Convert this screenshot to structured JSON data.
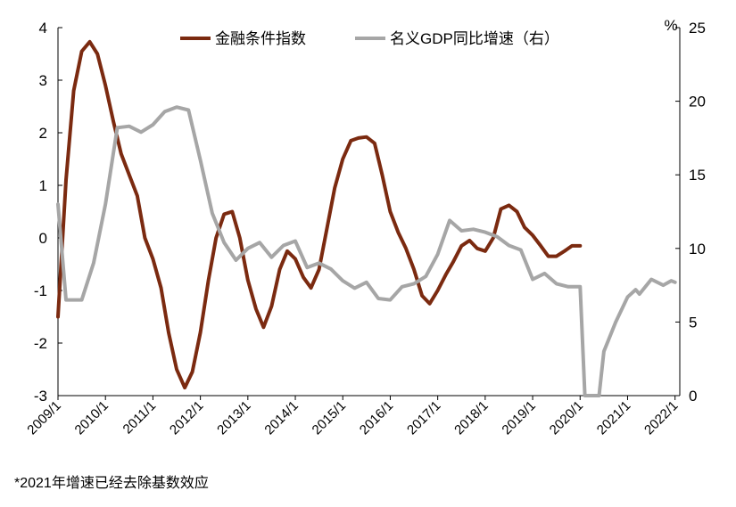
{
  "chart_data": {
    "type": "line",
    "title": "",
    "left_axis": {
      "min": -3,
      "max": 4,
      "ticks": [
        "4",
        "3",
        "2",
        "1",
        "0",
        "-1",
        "-2",
        "-3"
      ]
    },
    "right_axis": {
      "unit": "%",
      "min": 0,
      "max": 25,
      "ticks": [
        "25",
        "20",
        "15",
        "10",
        "5",
        "0"
      ]
    },
    "x_ticks": [
      "2009/1",
      "2010/1",
      "2011/1",
      "2012/1",
      "2013/1",
      "2014/1",
      "2015/1",
      "2016/1",
      "2017/1",
      "2018/1",
      "2019/1",
      "2020/1",
      "2021/1",
      "2022/1"
    ],
    "x_range": [
      2009.0,
      2022.1
    ],
    "grid": false,
    "legend_position": "top-center",
    "series": [
      {
        "name": "金融条件指数",
        "axis": "left",
        "color": "#7B2A10",
        "points": [
          [
            2009.0,
            -1.5
          ],
          [
            2009.17,
            1.1
          ],
          [
            2009.33,
            2.8
          ],
          [
            2009.5,
            3.55
          ],
          [
            2009.67,
            3.73
          ],
          [
            2009.83,
            3.5
          ],
          [
            2010.0,
            2.9
          ],
          [
            2010.17,
            2.2
          ],
          [
            2010.33,
            1.6
          ],
          [
            2010.5,
            1.2
          ],
          [
            2010.67,
            0.8
          ],
          [
            2010.83,
            0.0
          ],
          [
            2011.0,
            -0.4
          ],
          [
            2011.17,
            -0.95
          ],
          [
            2011.33,
            -1.8
          ],
          [
            2011.5,
            -2.5
          ],
          [
            2011.67,
            -2.85
          ],
          [
            2011.83,
            -2.55
          ],
          [
            2012.0,
            -1.8
          ],
          [
            2012.17,
            -0.8
          ],
          [
            2012.33,
            0.0
          ],
          [
            2012.5,
            0.45
          ],
          [
            2012.67,
            0.5
          ],
          [
            2012.83,
            0.0
          ],
          [
            2013.0,
            -0.8
          ],
          [
            2013.17,
            -1.35
          ],
          [
            2013.33,
            -1.7
          ],
          [
            2013.5,
            -1.3
          ],
          [
            2013.67,
            -0.6
          ],
          [
            2013.83,
            -0.25
          ],
          [
            2014.0,
            -0.4
          ],
          [
            2014.17,
            -0.75
          ],
          [
            2014.33,
            -0.95
          ],
          [
            2014.5,
            -0.6
          ],
          [
            2014.67,
            0.2
          ],
          [
            2014.83,
            0.95
          ],
          [
            2015.0,
            1.5
          ],
          [
            2015.17,
            1.85
          ],
          [
            2015.33,
            1.9
          ],
          [
            2015.5,
            1.92
          ],
          [
            2015.67,
            1.8
          ],
          [
            2015.83,
            1.2
          ],
          [
            2016.0,
            0.5
          ],
          [
            2016.17,
            0.1
          ],
          [
            2016.33,
            -0.2
          ],
          [
            2016.5,
            -0.6
          ],
          [
            2016.67,
            -1.1
          ],
          [
            2016.83,
            -1.25
          ],
          [
            2017.0,
            -1.0
          ],
          [
            2017.17,
            -0.7
          ],
          [
            2017.33,
            -0.45
          ],
          [
            2017.5,
            -0.15
          ],
          [
            2017.67,
            -0.05
          ],
          [
            2017.83,
            -0.2
          ],
          [
            2018.0,
            -0.25
          ],
          [
            2018.17,
            0.0
          ],
          [
            2018.33,
            0.55
          ],
          [
            2018.5,
            0.62
          ],
          [
            2018.67,
            0.5
          ],
          [
            2018.83,
            0.2
          ],
          [
            2019.0,
            0.05
          ],
          [
            2019.17,
            -0.15
          ],
          [
            2019.33,
            -0.35
          ],
          [
            2019.5,
            -0.35
          ],
          [
            2019.67,
            -0.25
          ],
          [
            2019.83,
            -0.15
          ],
          [
            2020.0,
            -0.15
          ]
        ]
      },
      {
        "name": "名义GDP同比增速（右）",
        "axis": "right",
        "color": "#A6A6A6",
        "points": [
          [
            2009.0,
            13.0
          ],
          [
            2009.17,
            6.5
          ],
          [
            2009.5,
            6.5
          ],
          [
            2009.75,
            9.0
          ],
          [
            2010.0,
            13.0
          ],
          [
            2010.25,
            18.2
          ],
          [
            2010.5,
            18.3
          ],
          [
            2010.75,
            17.9
          ],
          [
            2011.0,
            18.4
          ],
          [
            2011.25,
            19.3
          ],
          [
            2011.5,
            19.6
          ],
          [
            2011.75,
            19.4
          ],
          [
            2012.0,
            16.0
          ],
          [
            2012.25,
            12.4
          ],
          [
            2012.5,
            10.4
          ],
          [
            2012.75,
            9.2
          ],
          [
            2013.0,
            10.0
          ],
          [
            2013.25,
            10.4
          ],
          [
            2013.5,
            9.4
          ],
          [
            2013.75,
            10.2
          ],
          [
            2014.0,
            10.5
          ],
          [
            2014.25,
            8.7
          ],
          [
            2014.5,
            9.0
          ],
          [
            2014.75,
            8.6
          ],
          [
            2015.0,
            7.8
          ],
          [
            2015.25,
            7.3
          ],
          [
            2015.5,
            7.7
          ],
          [
            2015.75,
            6.6
          ],
          [
            2016.0,
            6.5
          ],
          [
            2016.25,
            7.4
          ],
          [
            2016.5,
            7.6
          ],
          [
            2016.75,
            8.1
          ],
          [
            2017.0,
            9.6
          ],
          [
            2017.25,
            11.9
          ],
          [
            2017.5,
            11.2
          ],
          [
            2017.75,
            11.3
          ],
          [
            2018.0,
            11.1
          ],
          [
            2018.25,
            10.8
          ],
          [
            2018.5,
            10.2
          ],
          [
            2018.75,
            9.9
          ],
          [
            2019.0,
            7.9
          ],
          [
            2019.25,
            8.3
          ],
          [
            2019.5,
            7.6
          ],
          [
            2019.75,
            7.4
          ],
          [
            2020.0,
            7.4
          ],
          [
            2020.1,
            0.0
          ],
          [
            2020.2,
            0.0
          ],
          [
            2020.4,
            0.0
          ],
          [
            2020.5,
            3.0
          ],
          [
            2020.75,
            5.0
          ],
          [
            2021.0,
            6.7
          ],
          [
            2021.17,
            7.2
          ],
          [
            2021.25,
            6.9
          ],
          [
            2021.5,
            7.9
          ],
          [
            2021.75,
            7.5
          ],
          [
            2021.92,
            7.8
          ],
          [
            2022.0,
            7.7
          ]
        ]
      }
    ]
  },
  "footnote": "*2021年增速已经去除基数效应"
}
